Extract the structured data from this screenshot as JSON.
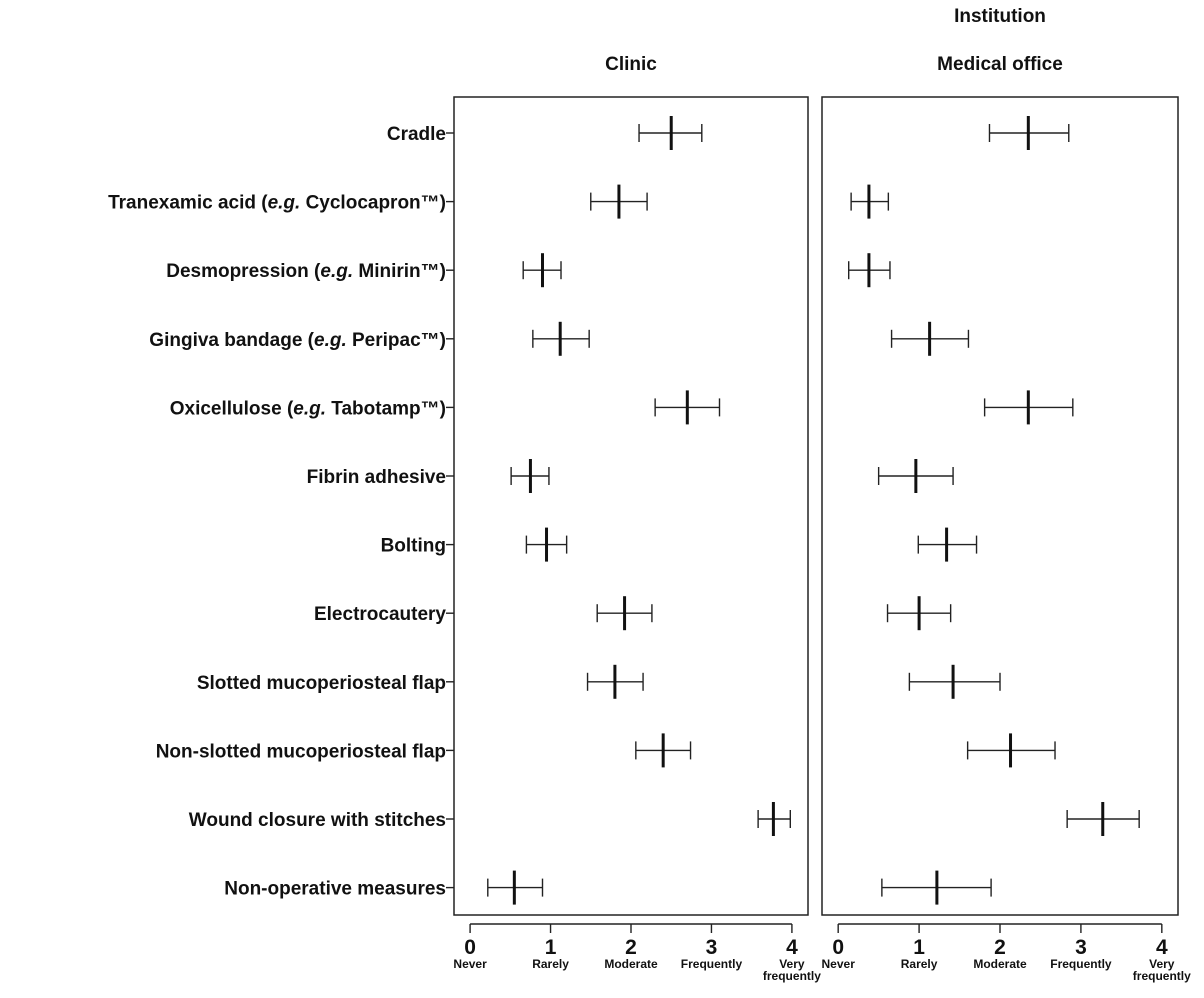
{
  "chart_data": {
    "type": "scatter",
    "title": "Institution",
    "categories": [
      "Cradle",
      "Tranexamic acid (e.g. Cyclocapron™)",
      "Desmopression (e.g. Minirin™)",
      "Gingiva bandage (e.g. Peripac™)",
      "Oxicellulose (e.g. Tabotamp™)",
      "Fibrin adhesive",
      "Bolting",
      "Electrocautery",
      "Slotted mucoperiosteal flap",
      "Non-slotted mucoperiosteal flap",
      "Wound closure with stitches",
      "Non-operative measures"
    ],
    "label_parts": [
      [
        "Cradle"
      ],
      [
        "Tranexamic acid (",
        "e.g.",
        " Cyclocapron™)"
      ],
      [
        "Desmopression (",
        "e.g.",
        " Minirin™)"
      ],
      [
        "Gingiva bandage (",
        "e.g.",
        " Peripac™)"
      ],
      [
        "Oxicellulose (",
        "e.g.",
        " Tabotamp™)"
      ],
      [
        "Fibrin adhesive"
      ],
      [
        "Bolting"
      ],
      [
        "Electrocautery"
      ],
      [
        "Slotted mucoperiosteal flap"
      ],
      [
        "Non-slotted mucoperiosteal flap"
      ],
      [
        "Wound closure with stitches"
      ],
      [
        "Non-operative measures"
      ]
    ],
    "xlim": [
      -0.2,
      4.2
    ],
    "xticks": [
      0,
      1,
      2,
      3,
      4
    ],
    "xtick_labels": [
      "Never",
      "Rarely",
      "Moderate",
      "Frequently",
      "Very frequently"
    ],
    "panels": [
      {
        "name": "Clinic",
        "mean": [
          2.5,
          1.85,
          0.9,
          1.12,
          2.7,
          0.75,
          0.95,
          1.92,
          1.8,
          2.4,
          3.77,
          0.55
        ],
        "lower": [
          2.1,
          1.5,
          0.66,
          0.78,
          2.3,
          0.51,
          0.7,
          1.58,
          1.46,
          2.06,
          3.58,
          0.22
        ],
        "upper": [
          2.88,
          2.2,
          1.13,
          1.48,
          3.1,
          0.98,
          1.2,
          2.26,
          2.15,
          2.74,
          3.98,
          0.9
        ]
      },
      {
        "name": "Medical office",
        "mean": [
          2.35,
          0.38,
          0.38,
          1.13,
          2.35,
          0.96,
          1.34,
          1.0,
          1.42,
          2.13,
          3.27,
          1.22
        ],
        "lower": [
          1.87,
          0.16,
          0.13,
          0.66,
          1.81,
          0.5,
          0.99,
          0.61,
          0.88,
          1.6,
          2.83,
          0.54
        ],
        "upper": [
          2.85,
          0.62,
          0.64,
          1.61,
          2.9,
          1.42,
          1.71,
          1.39,
          2.0,
          2.68,
          3.72,
          1.89
        ]
      }
    ],
    "grid": false,
    "legend": "none"
  }
}
